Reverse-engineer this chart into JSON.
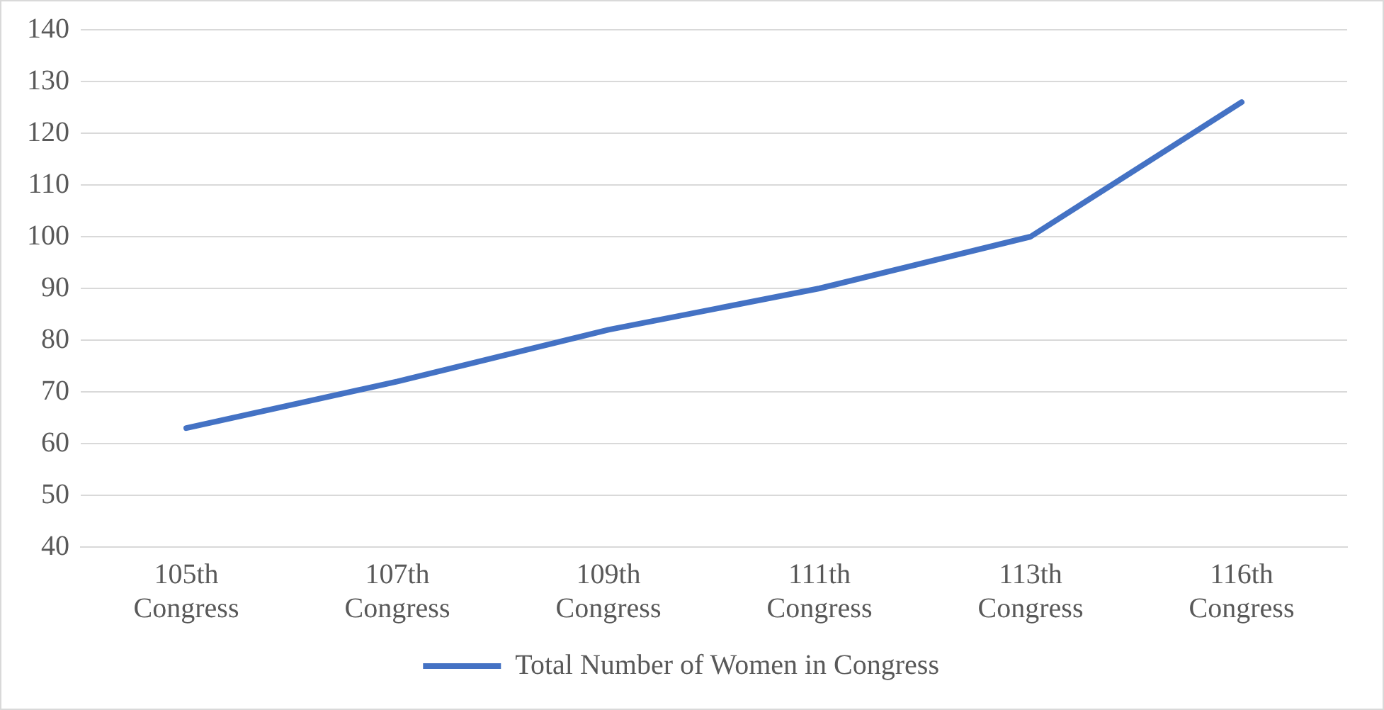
{
  "chart_data": {
    "type": "line",
    "categories": [
      "105th Congress",
      "107th Congress",
      "109th Congress",
      "111th Congress",
      "113th Congress",
      "116th Congress"
    ],
    "series": [
      {
        "name": "Total Number of Women in Congress",
        "color": "#4472c4",
        "values": [
          63,
          72,
          82,
          90,
          100,
          126
        ]
      }
    ],
    "ylim": [
      40,
      140
    ],
    "yticks": [
      40,
      50,
      60,
      70,
      80,
      90,
      100,
      110,
      120,
      130,
      140
    ],
    "grid": "y",
    "legend": "bottom",
    "marker": "none",
    "line_style": "solid"
  }
}
